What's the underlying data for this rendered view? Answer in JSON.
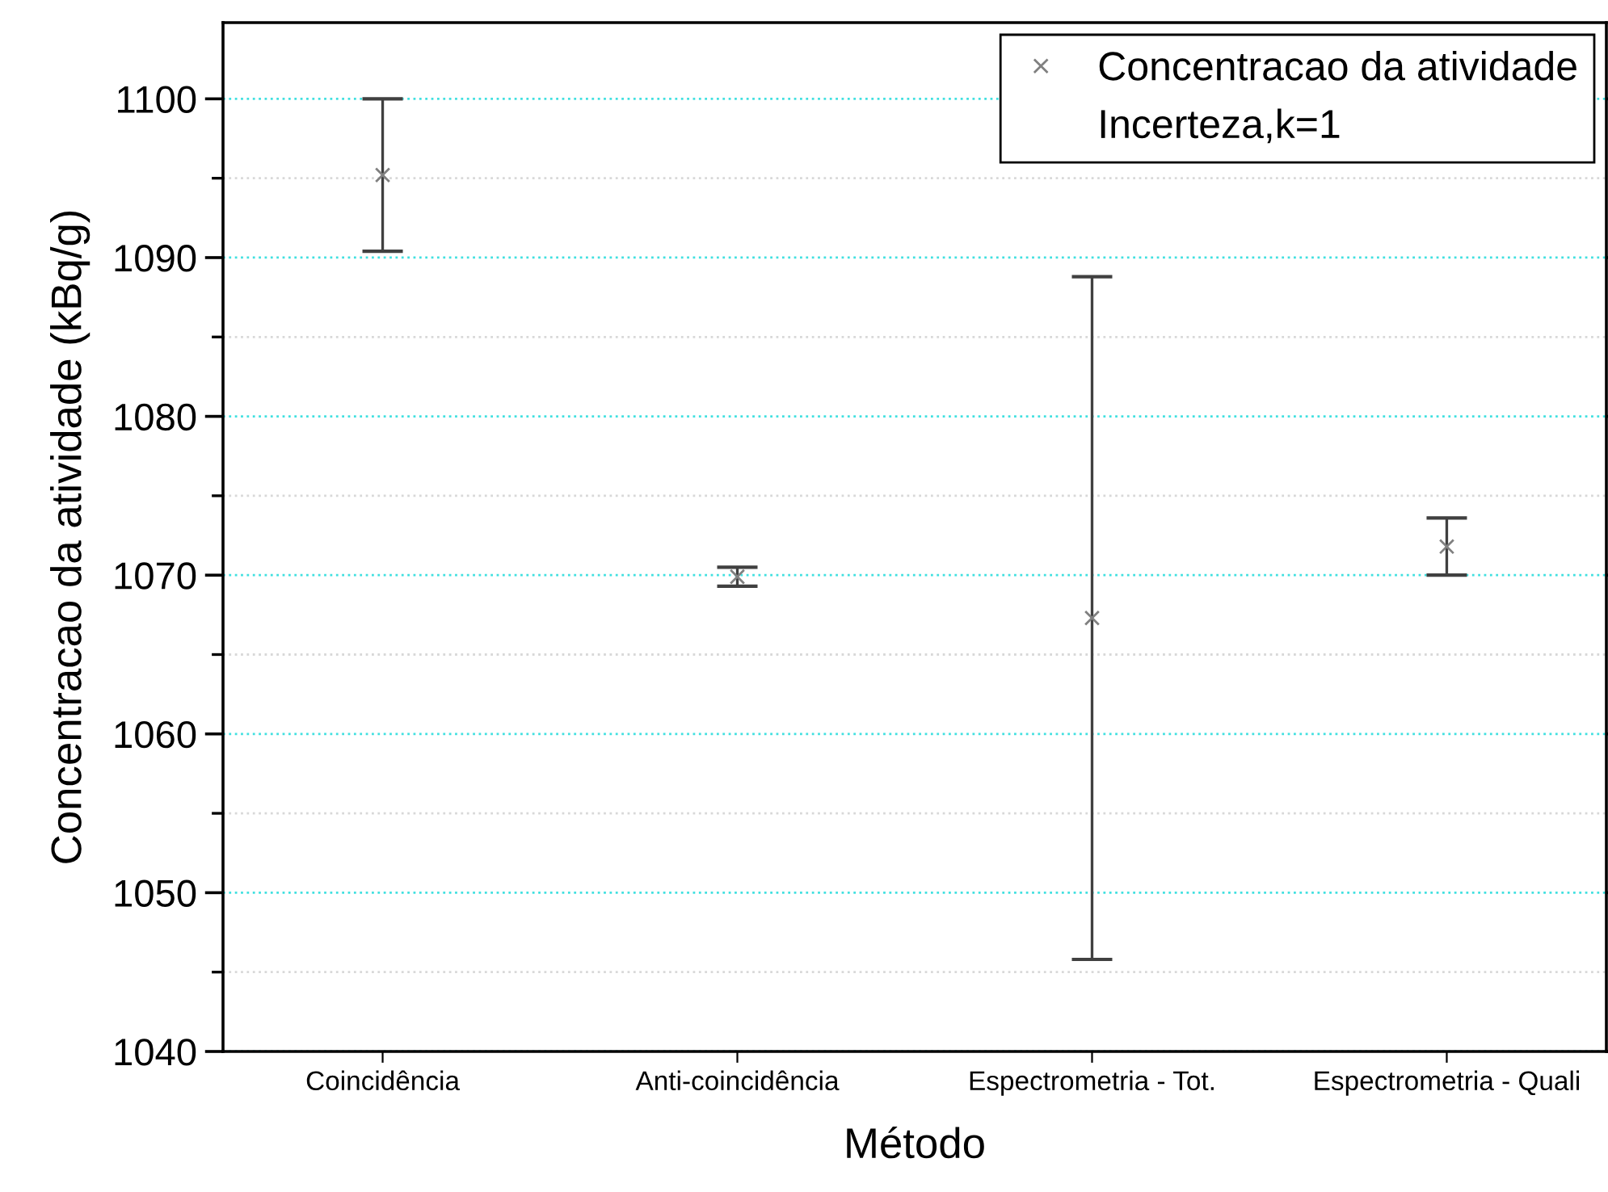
{
  "chart_data": {
    "type": "scatter",
    "xlabel": "Método",
    "ylabel": "Concentracao da atividade (kBq/g)",
    "categories": [
      "Coincidência",
      "Anti-coincidência",
      "Espectrometria - Tot.",
      "Espectrometria - Quali"
    ],
    "series": [
      {
        "name": "Concentracao da atividade",
        "color": "#808080",
        "values": [
          1095.2,
          1069.9,
          1067.3,
          1071.8
        ],
        "errors": [
          4.8,
          0.6,
          21.5,
          1.8
        ]
      }
    ],
    "annotations": [
      "Incerteza,k=1"
    ],
    "ylim": [
      1040,
      1104.8
    ],
    "yticks": [
      1040,
      1050,
      1060,
      1070,
      1080,
      1090,
      1100
    ],
    "grid": "y",
    "legend": "top right",
    "marker": "cross"
  }
}
